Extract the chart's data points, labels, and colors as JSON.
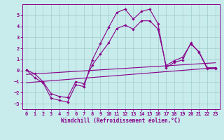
{
  "xlabel": "Windchill (Refroidissement éolien,°C)",
  "background_color": "#c8ecec",
  "grid_color": "#a0cccc",
  "line_color": "#880088",
  "spine_color": "#880088",
  "xlim": [
    -0.5,
    23.5
  ],
  "ylim": [
    -3.5,
    6.0
  ],
  "xticks": [
    0,
    1,
    2,
    3,
    4,
    5,
    6,
    7,
    8,
    9,
    10,
    11,
    12,
    13,
    14,
    15,
    16,
    17,
    18,
    19,
    20,
    21,
    22,
    23
  ],
  "yticks": [
    -3,
    -2,
    -1,
    0,
    1,
    2,
    3,
    4,
    5
  ],
  "x": [
    0,
    1,
    2,
    3,
    4,
    5,
    6,
    7,
    8,
    9,
    10,
    11,
    12,
    13,
    14,
    15,
    16,
    17,
    18,
    19,
    20,
    21,
    22,
    23
  ],
  "line1": [
    0.05,
    -0.65,
    -1.1,
    -2.5,
    -2.7,
    -2.85,
    -1.3,
    -1.45,
    0.95,
    2.45,
    3.9,
    5.25,
    5.55,
    4.65,
    5.35,
    5.55,
    4.25,
    0.25,
    0.75,
    0.95,
    2.5,
    1.65,
    0.15,
    0.15
  ],
  "line2": [
    0.05,
    -0.3,
    -1.0,
    -2.1,
    -2.35,
    -2.45,
    -1.0,
    -1.2,
    0.5,
    1.5,
    2.5,
    3.8,
    4.1,
    3.75,
    4.5,
    4.5,
    3.75,
    0.45,
    0.9,
    1.2,
    2.4,
    1.7,
    0.25,
    0.25
  ],
  "line3_x": [
    0,
    23
  ],
  "line3_y": [
    -1.1,
    0.25
  ],
  "line4_x": [
    0,
    23
  ],
  "line4_y": [
    -0.35,
    0.7
  ],
  "tick_fontsize": 5.0,
  "xlabel_fontsize": 5.5,
  "tick_color": "#880088",
  "xlabel_color": "#880088"
}
